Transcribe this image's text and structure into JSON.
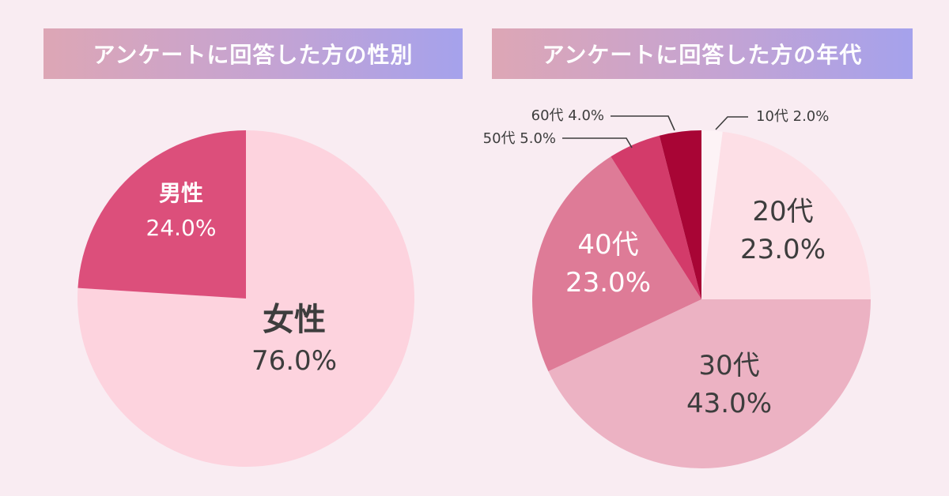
{
  "colors": {
    "background": "#f9ecf2",
    "banner_gradient": [
      "#dda6b5",
      "#c4a3d3",
      "#a5a2ec"
    ],
    "dark_text": "#3d3d3d",
    "light_text": "#ffffff"
  },
  "chart_data": [
    {
      "type": "pie",
      "title": "アンケートに回答した方の性別",
      "start_angle_deg": 0,
      "direction": "clockwise",
      "slices": [
        {
          "name": "女性",
          "value": 76.0,
          "label": "76.0%",
          "color": "#fdd3de"
        },
        {
          "name": "男性",
          "value": 24.0,
          "label": "24.0%",
          "color": "#dc4f7b"
        }
      ]
    },
    {
      "type": "pie",
      "title": "アンケートに回答した方の年代",
      "start_angle_deg": 0,
      "direction": "clockwise",
      "slices": [
        {
          "name": "10代",
          "value": 2.0,
          "label": "2.0%",
          "color": "#fdf3f6",
          "callout": "10代 2.0%"
        },
        {
          "name": "20代",
          "value": 23.0,
          "label": "23.0%",
          "color": "#fddfe6"
        },
        {
          "name": "30代",
          "value": 43.0,
          "label": "43.0%",
          "color": "#ecb2c3"
        },
        {
          "name": "40代",
          "value": 23.0,
          "label": "23.0%",
          "color": "#de7b97"
        },
        {
          "name": "50代",
          "value": 5.0,
          "label": "5.0%",
          "color": "#d33b6a",
          "callout": "50代 5.0%"
        },
        {
          "name": "60代",
          "value": 4.0,
          "label": "4.0%",
          "color": "#a80535",
          "callout": "60代 4.0%"
        }
      ]
    }
  ]
}
